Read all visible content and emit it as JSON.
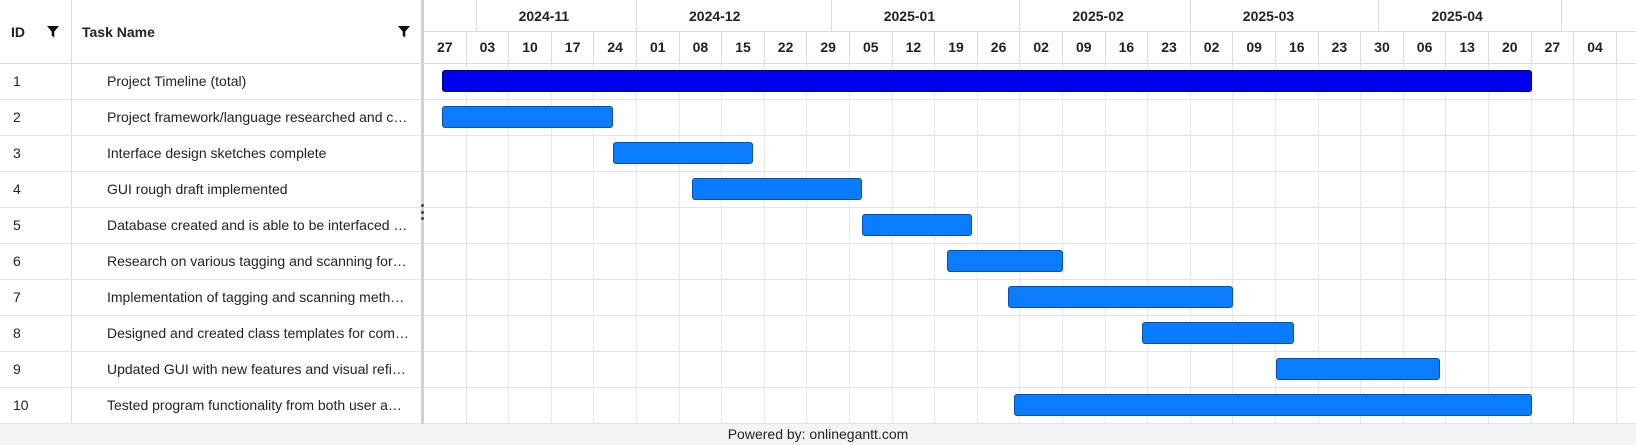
{
  "grid": {
    "id_header": "ID",
    "name_header": "Task Name"
  },
  "tasks": [
    {
      "id": "1",
      "name": "Project Timeline (total)",
      "start": "2024-10-30",
      "end": "2025-04-27",
      "summary": true
    },
    {
      "id": "2",
      "name": "Project framework/language researched and chosen",
      "start": "2024-10-30",
      "end": "2024-11-27",
      "summary": false
    },
    {
      "id": "3",
      "name": "Interface design sketches complete",
      "start": "2024-11-27",
      "end": "2024-12-20",
      "summary": false
    },
    {
      "id": "4",
      "name": "GUI rough draft implemented",
      "start": "2024-12-10",
      "end": "2025-01-07",
      "summary": false
    },
    {
      "id": "5",
      "name": "Database created and is able to be interfaced with",
      "start": "2025-01-07",
      "end": "2025-01-25",
      "summary": false
    },
    {
      "id": "6",
      "name": "Research on various tagging and scanning formats",
      "start": "2025-01-21",
      "end": "2025-02-09",
      "summary": false
    },
    {
      "id": "7",
      "name": "Implementation of tagging and scanning methods",
      "start": "2025-01-31",
      "end": "2025-03-09",
      "summary": false
    },
    {
      "id": "8",
      "name": "Designed and created class templates for common items",
      "start": "2025-02-22",
      "end": "2025-03-19",
      "summary": false
    },
    {
      "id": "9",
      "name": "Updated GUI with new features and visual refinements",
      "start": "2025-03-16",
      "end": "2025-04-12",
      "summary": false
    },
    {
      "id": "10",
      "name": "Tested program functionality from both user and developer side",
      "start": "2025-02-01",
      "end": "2025-04-27",
      "summary": false
    }
  ],
  "timeline": {
    "first_week": "2024-10-27",
    "week_count": 28,
    "months": [
      {
        "label": "2024-11",
        "start": "2024-11-03",
        "end": "2024-12-01"
      },
      {
        "label": "2024-12",
        "start": "2024-12-01",
        "end": "2025-01-02"
      },
      {
        "label": "2025-01",
        "start": "2025-01-02",
        "end": "2025-02-02"
      },
      {
        "label": "2025-02",
        "start": "2025-02-02",
        "end": "2025-03-02"
      },
      {
        "label": "2025-03",
        "start": "2025-03-02",
        "end": "2025-04-02"
      },
      {
        "label": "2025-04",
        "start": "2025-04-02",
        "end": "2025-05-02"
      }
    ],
    "week_labels": [
      "27",
      "03",
      "10",
      "17",
      "24",
      "01",
      "08",
      "15",
      "22",
      "29",
      "05",
      "12",
      "19",
      "26",
      "02",
      "09",
      "16",
      "23",
      "02",
      "09",
      "16",
      "23",
      "30",
      "06",
      "13",
      "20",
      "27",
      "04"
    ]
  },
  "colors": {
    "task_bar": "#0a7cff",
    "summary_bar": "#0000ee"
  },
  "footer": {
    "text": "Powered by: onlinegantt.com"
  }
}
